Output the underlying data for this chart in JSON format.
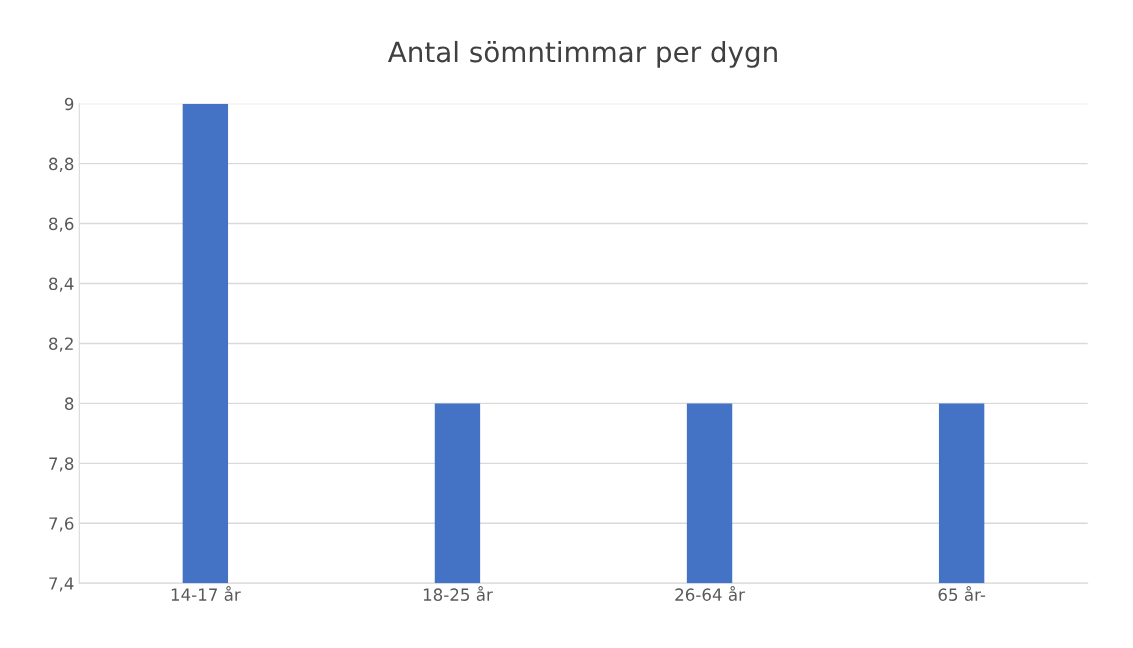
{
  "chart_data": {
    "type": "bar",
    "title": "Antal sömntimmar per dygn",
    "categories": [
      "14-17 år",
      "18-25 år",
      "26-64 år",
      "65 år-"
    ],
    "values": [
      9,
      8,
      8,
      8
    ],
    "color": "#4472c4",
    "ylim": [
      7.4,
      9
    ],
    "yticks": [
      {
        "value": 7.4,
        "label": "7,4"
      },
      {
        "value": 7.6,
        "label": "7,6"
      },
      {
        "value": 7.8,
        "label": "7,8"
      },
      {
        "value": 8,
        "label": "8"
      },
      {
        "value": 8.2,
        "label": "8,2"
      },
      {
        "value": 8.4,
        "label": "8,4"
      },
      {
        "value": 8.6,
        "label": "8,6"
      },
      {
        "value": 8.8,
        "label": "8,8"
      },
      {
        "value": 9,
        "label": "9"
      }
    ],
    "grid": "y"
  }
}
